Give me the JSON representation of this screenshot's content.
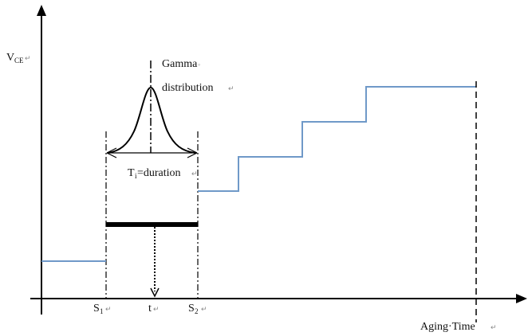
{
  "y_axis": {
    "label": "V",
    "sub": "CE",
    "mark": "↵"
  },
  "x_axis": {
    "label": "Aging·Time",
    "mark": "↵"
  },
  "x_ticks": {
    "s1": {
      "label": "S",
      "sub": "1",
      "mark": "↵"
    },
    "t": {
      "label": "t",
      "mark": "↵"
    },
    "s2": {
      "label": "S",
      "sub": "2",
      "mark": "↵"
    }
  },
  "distribution": {
    "line1": "Gamma",
    "line1_mark": "◦",
    "line2": "distribution",
    "line2_mark": "↵"
  },
  "duration": {
    "label": "T",
    "sub": "i",
    "text": "=duration",
    "mark": "↵"
  },
  "colors": {
    "step": "#6f99c8",
    "ink": "#000000"
  }
}
